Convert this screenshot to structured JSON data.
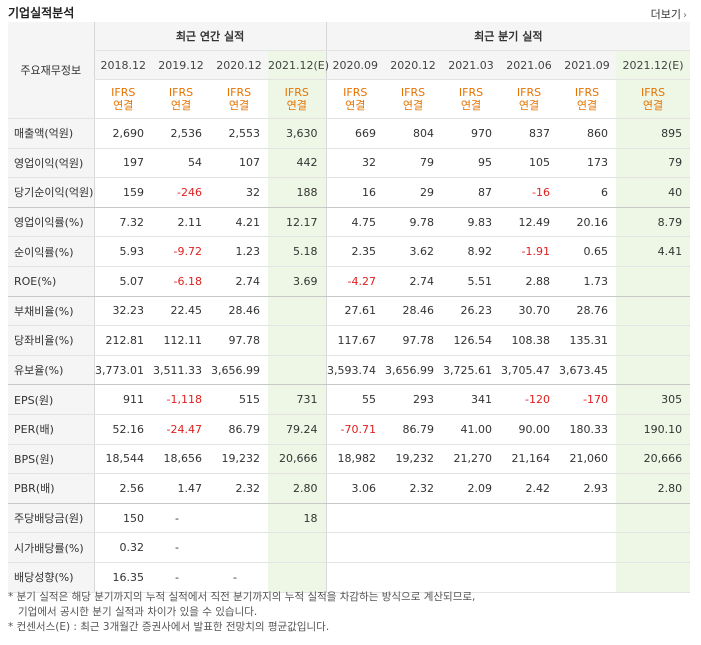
{
  "header": {
    "title": "기업실적분석",
    "more_label": "더보기"
  },
  "table": {
    "corner_label": "주요재무정보",
    "group_annual": "최근 연간 실적",
    "group_quarter": "최근 분기 실적",
    "periods": [
      "2018.12",
      "2019.12",
      "2020.12",
      "2021.12(E)",
      "2020.09",
      "2020.12",
      "2021.03",
      "2021.06",
      "2021.09",
      "2021.12(E)"
    ],
    "ifrs_top": "IFRS",
    "ifrs_bottom": "연결",
    "rows": [
      {
        "label": "매출액(억원)",
        "cells": [
          "2,690",
          "2,536",
          "2,553",
          "3,630",
          "669",
          "804",
          "970",
          "837",
          "860",
          "895"
        ]
      },
      {
        "label": "영업이익(억원)",
        "cells": [
          "197",
          "54",
          "107",
          "442",
          "32",
          "79",
          "95",
          "105",
          "173",
          "79"
        ]
      },
      {
        "label": "당기순이익(억원)",
        "cells": [
          "159",
          "-246",
          "32",
          "188",
          "16",
          "29",
          "87",
          "-16",
          "6",
          "40"
        ]
      },
      {
        "label": "영업이익률(%)",
        "cells": [
          "7.32",
          "2.11",
          "4.21",
          "12.17",
          "4.75",
          "9.78",
          "9.83",
          "12.49",
          "20.16",
          "8.79"
        ]
      },
      {
        "label": "순이익률(%)",
        "cells": [
          "5.93",
          "-9.72",
          "1.23",
          "5.18",
          "2.35",
          "3.62",
          "8.92",
          "-1.91",
          "0.65",
          "4.41"
        ]
      },
      {
        "label": "ROE(%)",
        "cells": [
          "5.07",
          "-6.18",
          "2.74",
          "3.69",
          "-4.27",
          "2.74",
          "5.51",
          "2.88",
          "1.73",
          ""
        ]
      },
      {
        "label": "부채비율(%)",
        "cells": [
          "32.23",
          "22.45",
          "28.46",
          "",
          "27.61",
          "28.46",
          "26.23",
          "30.70",
          "28.76",
          ""
        ]
      },
      {
        "label": "당좌비율(%)",
        "cells": [
          "212.81",
          "112.11",
          "97.78",
          "",
          "117.67",
          "97.78",
          "126.54",
          "108.38",
          "135.31",
          ""
        ]
      },
      {
        "label": "유보율(%)",
        "cells": [
          "3,773.01",
          "3,511.33",
          "3,656.99",
          "",
          "3,593.74",
          "3,656.99",
          "3,725.61",
          "3,705.47",
          "3,673.45",
          ""
        ]
      },
      {
        "label": "EPS(원)",
        "cells": [
          "911",
          "-1,118",
          "515",
          "731",
          "55",
          "293",
          "341",
          "-120",
          "-170",
          "305"
        ]
      },
      {
        "label": "PER(배)",
        "cells": [
          "52.16",
          "-24.47",
          "86.79",
          "79.24",
          "-70.71",
          "86.79",
          "41.00",
          "90.00",
          "180.33",
          "190.10"
        ]
      },
      {
        "label": "BPS(원)",
        "cells": [
          "18,544",
          "18,656",
          "19,232",
          "20,666",
          "18,982",
          "19,232",
          "21,270",
          "21,164",
          "21,060",
          "20,666"
        ]
      },
      {
        "label": "PBR(배)",
        "cells": [
          "2.56",
          "1.47",
          "2.32",
          "2.80",
          "3.06",
          "2.32",
          "2.09",
          "2.42",
          "2.93",
          "2.80"
        ]
      },
      {
        "label": "주당배당금(원)",
        "cells": [
          "150",
          "-",
          "",
          "18",
          "",
          "",
          "",
          "",
          "",
          ""
        ]
      },
      {
        "label": "시가배당률(%)",
        "cells": [
          "0.32",
          "-",
          "",
          "",
          "",
          "",
          "",
          "",
          "",
          ""
        ]
      },
      {
        "label": "배당성향(%)",
        "cells": [
          "16.35",
          "-",
          "-",
          "",
          "",
          "",
          "",
          "",
          "",
          ""
        ]
      }
    ]
  },
  "notes": {
    "line1": "* 분기 실적은 해당 분기까지의 누적 실적에서 직전 분기까지의 누적 실적을 차감하는 방식으로 계산되므로,",
    "line2": "기업에서 공시한 분기 실적과 차이가 있을 수 있습니다.",
    "line3": "* 컨센서스(E) : 최근 3개월간 증권사에서 발표한 전망치의 평균값입니다."
  }
}
